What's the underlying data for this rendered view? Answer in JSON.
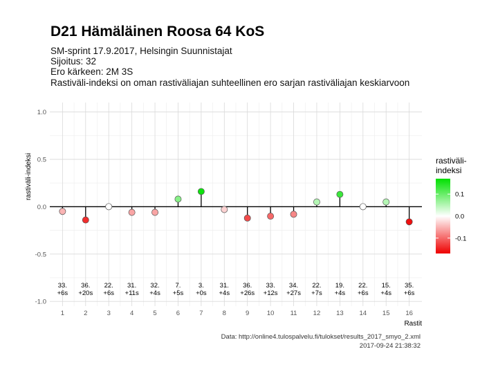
{
  "header": {
    "title": "D21 Hämäläinen Roosa 64 KoS",
    "subtitle_lines": [
      "SM-sprint 17.9.2017, Helsingin Suunnistajat",
      "Sijoitus: 32",
      "Ero kärkeen: 2M 3S",
      "Rastiväli-indeksi on oman rastiväliajan suhteellinen ero sarjan rastiväliajan keskiarvoon"
    ]
  },
  "footer": {
    "source": "Data: http://online4.tulospalvelu.fi/tulokset/results_2017_smyo_2.xml",
    "timestamp": "2017-09-24 21:38:32"
  },
  "chart_data": {
    "type": "scatter",
    "xlabel": "Rastit",
    "ylabel": "rastiväli-indeksi",
    "ylim": [
      -1.05,
      1.1
    ],
    "xlim": [
      0.45,
      16.55
    ],
    "yticks": [
      -1.0,
      -0.5,
      0.0,
      0.5,
      1.0
    ],
    "ytick_labels": [
      "-1.0",
      "-0.5",
      "0.0",
      "0.5",
      "1.0"
    ],
    "x": [
      1,
      2,
      3,
      4,
      5,
      6,
      7,
      8,
      9,
      10,
      11,
      12,
      13,
      14,
      15,
      16
    ],
    "values": [
      -0.05,
      -0.14,
      0.0,
      -0.06,
      -0.06,
      0.08,
      0.16,
      -0.03,
      -0.12,
      -0.1,
      -0.08,
      0.05,
      0.13,
      0.0,
      0.05,
      -0.16
    ],
    "rank_labels": [
      "33.",
      "36.",
      "22.",
      "31.",
      "32.",
      "7.",
      "3.",
      "31.",
      "36.",
      "33.",
      "34.",
      "22.",
      "19.",
      "22.",
      "15.",
      "35."
    ],
    "diff_labels": [
      "+6s",
      "+20s",
      "+6s",
      "+11s",
      "+4s",
      "+5s",
      "+0s",
      "+4s",
      "+26s",
      "+12s",
      "+27s",
      "+7s",
      "+4s",
      "+6s",
      "+4s",
      "+6s"
    ],
    "legend": {
      "title_lines": [
        "rastiväli-",
        "indeksi"
      ],
      "ticks": [
        0.1,
        0.0,
        -0.1
      ],
      "tick_labels": [
        "0.1",
        "0.0",
        "-0.1"
      ],
      "range": [
        -0.17,
        0.17
      ],
      "position": "right"
    },
    "colors": {
      "high": "#00e000",
      "mid": "#ffffff",
      "low": "#ee0000"
    },
    "grid": true
  }
}
